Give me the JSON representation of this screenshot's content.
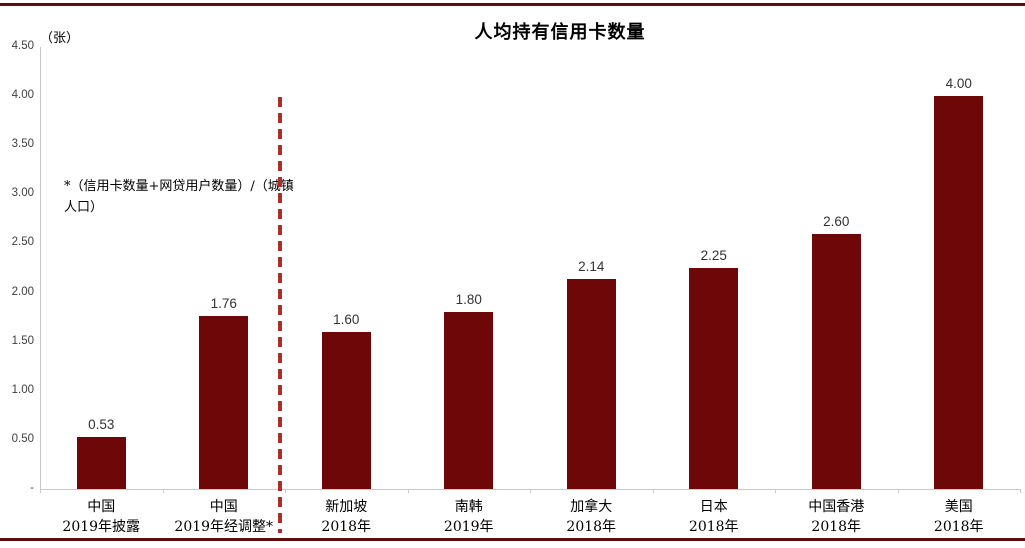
{
  "page": {
    "background": "#ffffff"
  },
  "frame": {
    "line_color": "#5a0f0f"
  },
  "chart_data": {
    "type": "bar",
    "title": "人均持有信用卡数量",
    "unit_label": "（张）",
    "footnote": "*（信用卡数量+网贷用户数量）/（城镇人口）",
    "categories": [
      {
        "region": "中国",
        "period": "2019年披露"
      },
      {
        "region": "中国",
        "period": "2019年经调整*"
      },
      {
        "region": "新加坡",
        "period": "2018年"
      },
      {
        "region": "南韩",
        "period": "2019年"
      },
      {
        "region": "加拿大",
        "period": "2018年"
      },
      {
        "region": "日本",
        "period": "2018年"
      },
      {
        "region": "中国香港",
        "period": "2018年"
      },
      {
        "region": "美国",
        "period": "2018年"
      }
    ],
    "values": [
      0.53,
      1.76,
      1.6,
      1.8,
      2.14,
      2.25,
      2.6,
      4.0
    ],
    "value_labels": [
      "0.53",
      "1.76",
      "1.60",
      "1.80",
      "2.14",
      "2.25",
      "2.60",
      "4.00"
    ],
    "xlabel": "",
    "ylabel": "（张）",
    "ylim": [
      0,
      4.5
    ],
    "y_ticks": [
      {
        "value": 4.5,
        "label": "4.50"
      },
      {
        "value": 4.0,
        "label": "4.00"
      },
      {
        "value": 3.5,
        "label": "3.50"
      },
      {
        "value": 3.0,
        "label": "3.00"
      },
      {
        "value": 2.5,
        "label": "2.50"
      },
      {
        "value": 2.0,
        "label": "2.00"
      },
      {
        "value": 1.5,
        "label": "1.50"
      },
      {
        "value": 1.0,
        "label": "1.00"
      },
      {
        "value": 0.5,
        "label": "0.50"
      },
      {
        "value": 0.0,
        "label": "-"
      }
    ],
    "grid": "off",
    "legend": "none",
    "separator_after_category_index": 1,
    "colors": {
      "bar": "#6e0707",
      "separator": "#b22b2b",
      "axis": "#c9c9c9",
      "frame_line": "#5a0f0f",
      "tick_text": "#404040",
      "value_label_text": "#333333"
    }
  }
}
